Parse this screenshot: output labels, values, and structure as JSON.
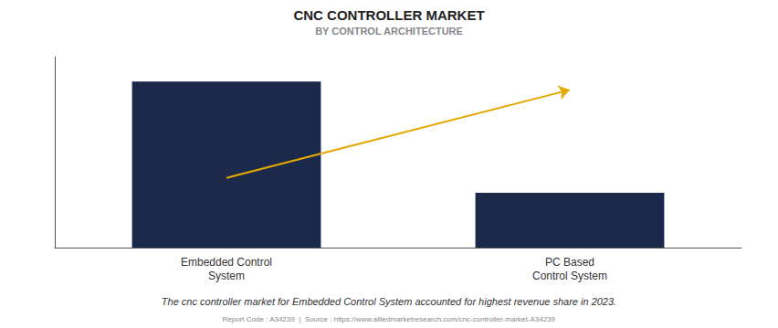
{
  "chart_data": {
    "type": "bar",
    "title": "CNC CONTROLLER MARKET",
    "subtitle": "BY CONTROL ARCHITECTURE",
    "categories": [
      "Embedded Control\nSystem",
      "PC Based\nControl System"
    ],
    "values": [
      100,
      33
    ],
    "color": "#1B2A4A",
    "ylim": [
      0,
      115
    ],
    "yticks": [],
    "grid": false,
    "tick_labels": "x",
    "trend_line": {
      "values": [
        42,
        95
      ],
      "color": "#E5A800"
    },
    "annotation": "The cnc controller market for Embedded Control System accounted for highest revenue share in 2023.",
    "footer": "Report Code : A34239  |  Source : https://www.alliedmarketresearch.com/cnc-controller-market-A34239"
  }
}
